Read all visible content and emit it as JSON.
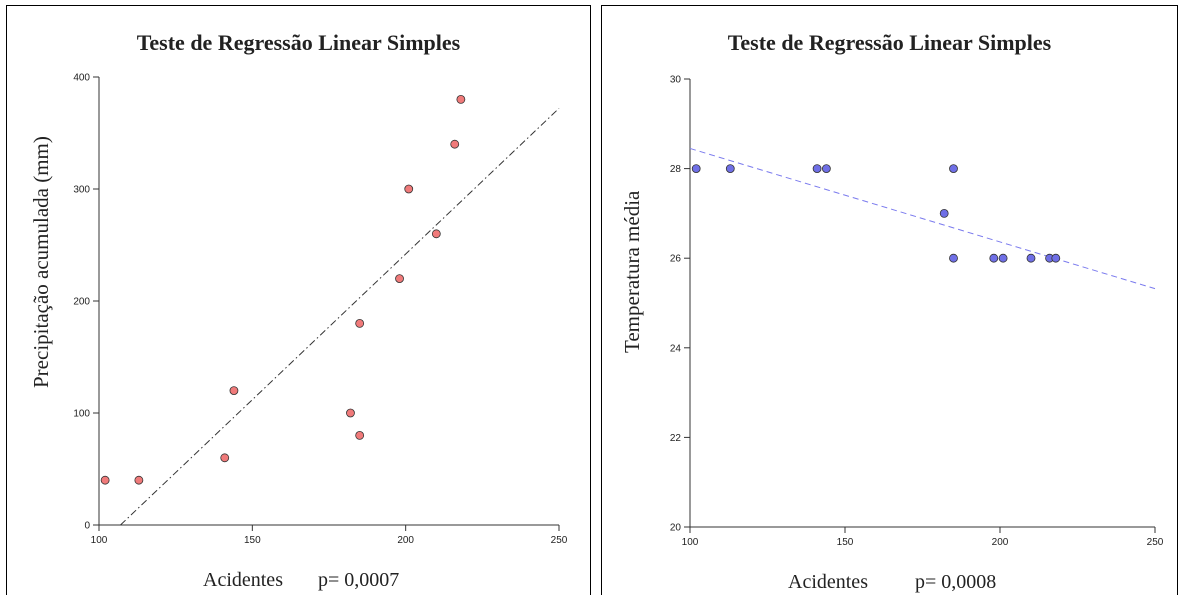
{
  "chart_data": [
    {
      "type": "scatter",
      "title": "Teste de Regressão Linear Simples",
      "xlabel": "Acidentes",
      "pvalue_label": "p= 0,0007",
      "ylabel": "Precipitação acumulada (mm)",
      "xlim": [
        100,
        250
      ],
      "ylim": [
        0,
        400
      ],
      "xticks": [
        100,
        150,
        200,
        250
      ],
      "yticks": [
        0,
        100,
        200,
        300,
        400
      ],
      "point_color": "#f07a7a",
      "line_color": "#333333",
      "line_style": "dash-dot",
      "regression_line": [
        [
          107,
          0
        ],
        [
          250,
          372
        ]
      ],
      "points": [
        {
          "x": 102,
          "y": 40
        },
        {
          "x": 113,
          "y": 40
        },
        {
          "x": 141,
          "y": 60
        },
        {
          "x": 144,
          "y": 120
        },
        {
          "x": 182,
          "y": 100
        },
        {
          "x": 185,
          "y": 80
        },
        {
          "x": 185,
          "y": 180
        },
        {
          "x": 198,
          "y": 220
        },
        {
          "x": 201,
          "y": 300
        },
        {
          "x": 210,
          "y": 260
        },
        {
          "x": 216,
          "y": 340
        },
        {
          "x": 218,
          "y": 380
        }
      ]
    },
    {
      "type": "scatter",
      "title": "Teste de Regressão Linear Simples",
      "xlabel": "Acidentes",
      "pvalue_label": "p= 0,0008",
      "ylabel": "Temperatura média",
      "xlim": [
        100,
        250
      ],
      "ylim": [
        20,
        30
      ],
      "xticks": [
        100,
        150,
        200,
        250
      ],
      "yticks": [
        20,
        22,
        24,
        26,
        28,
        30
      ],
      "point_color": "#6f6fe6",
      "line_color": "#7a7aee",
      "line_style": "dashed",
      "regression_line": [
        [
          100,
          28.45
        ],
        [
          250,
          25.32
        ]
      ],
      "points": [
        {
          "x": 102,
          "y": 28
        },
        {
          "x": 113,
          "y": 28
        },
        {
          "x": 141,
          "y": 28
        },
        {
          "x": 144,
          "y": 28
        },
        {
          "x": 182,
          "y": 27
        },
        {
          "x": 185,
          "y": 28
        },
        {
          "x": 185,
          "y": 26
        },
        {
          "x": 198,
          "y": 26
        },
        {
          "x": 201,
          "y": 26
        },
        {
          "x": 210,
          "y": 26
        },
        {
          "x": 216,
          "y": 26
        },
        {
          "x": 218,
          "y": 26
        }
      ]
    }
  ]
}
